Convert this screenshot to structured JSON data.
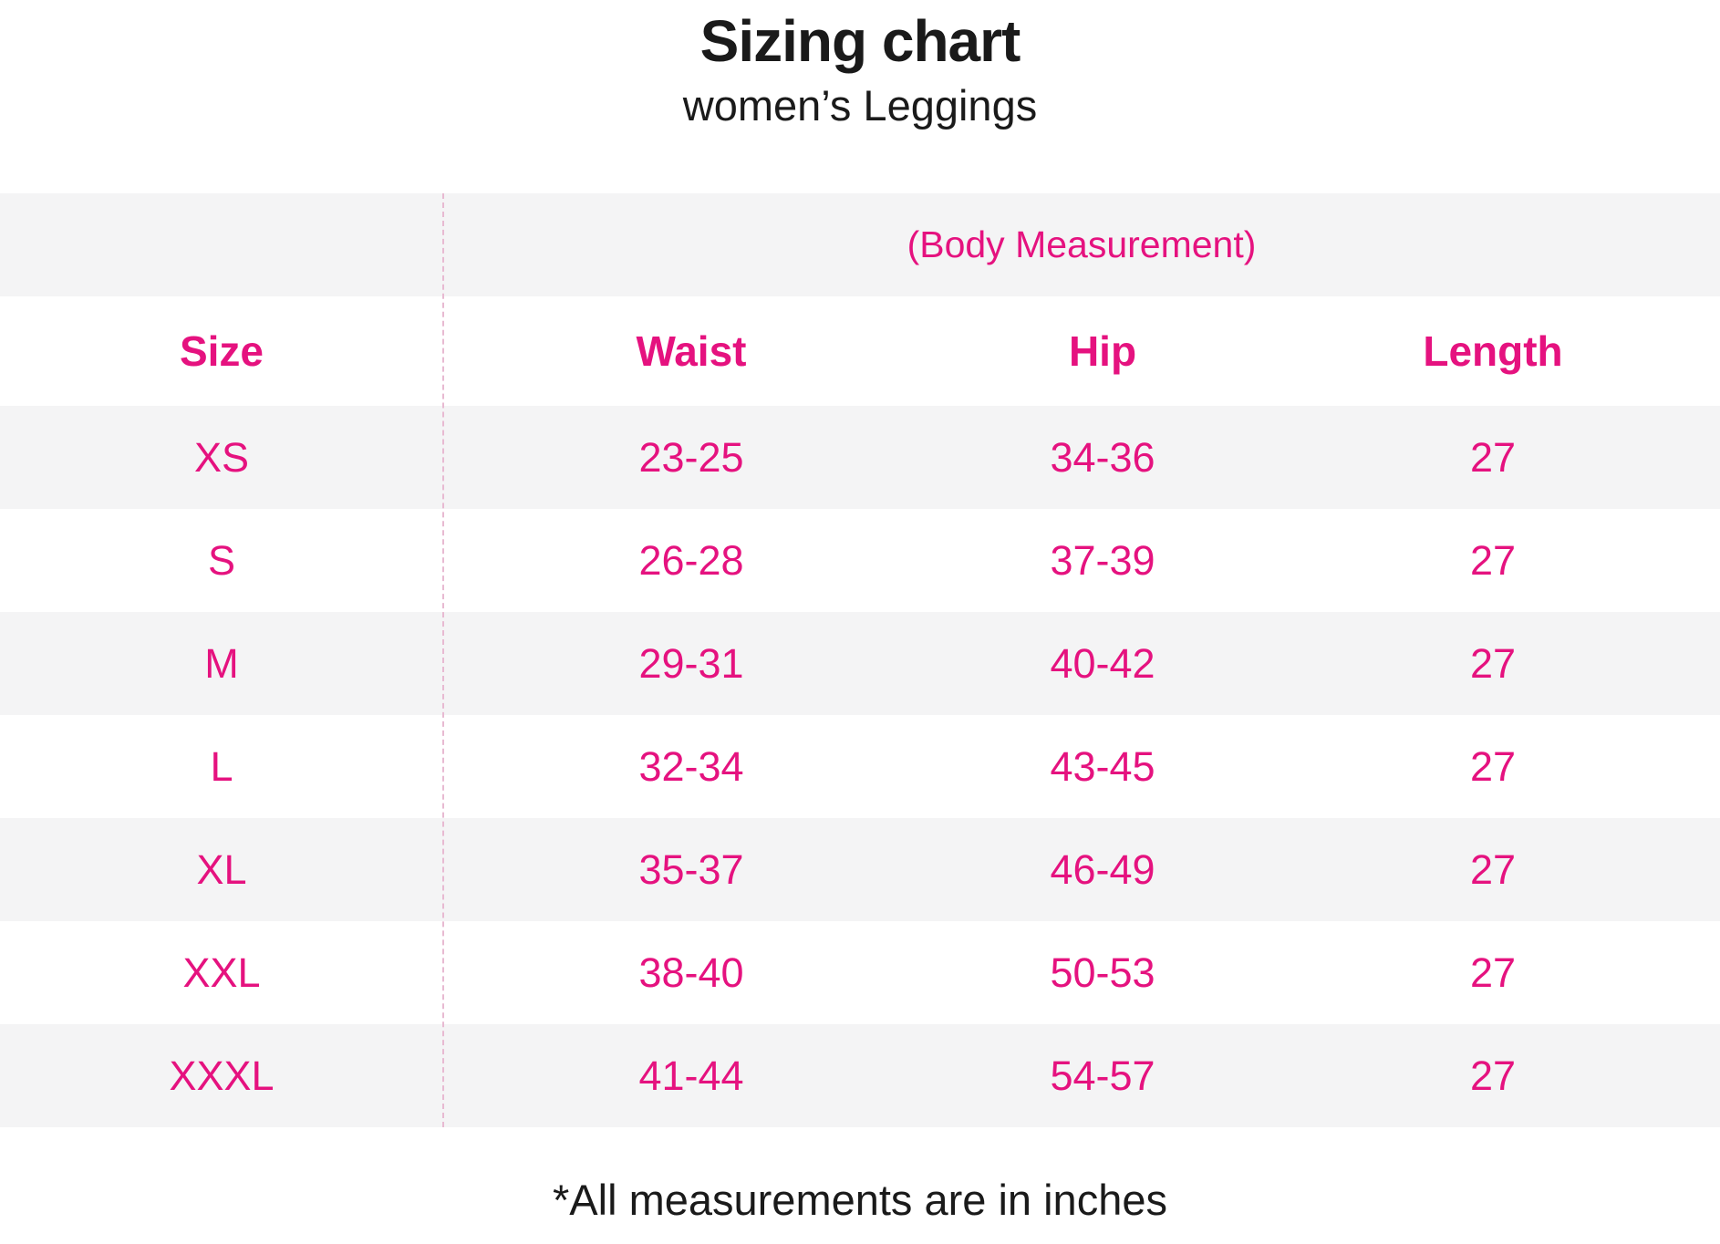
{
  "colors": {
    "accent_pink": "#E5127F",
    "row_stripe": "#F4F4F5",
    "text_dark": "#1A1A1A",
    "divider_pink": "#E8BAD2"
  },
  "chart_data": {
    "type": "table",
    "title": "Sizing chart",
    "subtitle": "women’s Leggings",
    "group_header": "(Body Measurement)",
    "columns": [
      "Size",
      "Waist",
      "Hip",
      "Length"
    ],
    "rows": [
      [
        "XS",
        "23-25",
        "34-36",
        "27"
      ],
      [
        "S",
        "26-28",
        "37-39",
        "27"
      ],
      [
        "M",
        "29-31",
        "40-42",
        "27"
      ],
      [
        "L",
        "32-34",
        "43-45",
        "27"
      ],
      [
        "XL",
        "35-37",
        "46-49",
        "27"
      ],
      [
        "XXL",
        "38-40",
        "50-53",
        "27"
      ],
      [
        "XXXL",
        "41-44",
        "54-57",
        "27"
      ]
    ],
    "footnote": "*All measurements are in inches",
    "units": "inches",
    "layout_hints": {
      "stripe_pattern": "group header and odd data rows shaded",
      "divider": "dashed vertical line after Size column"
    }
  }
}
